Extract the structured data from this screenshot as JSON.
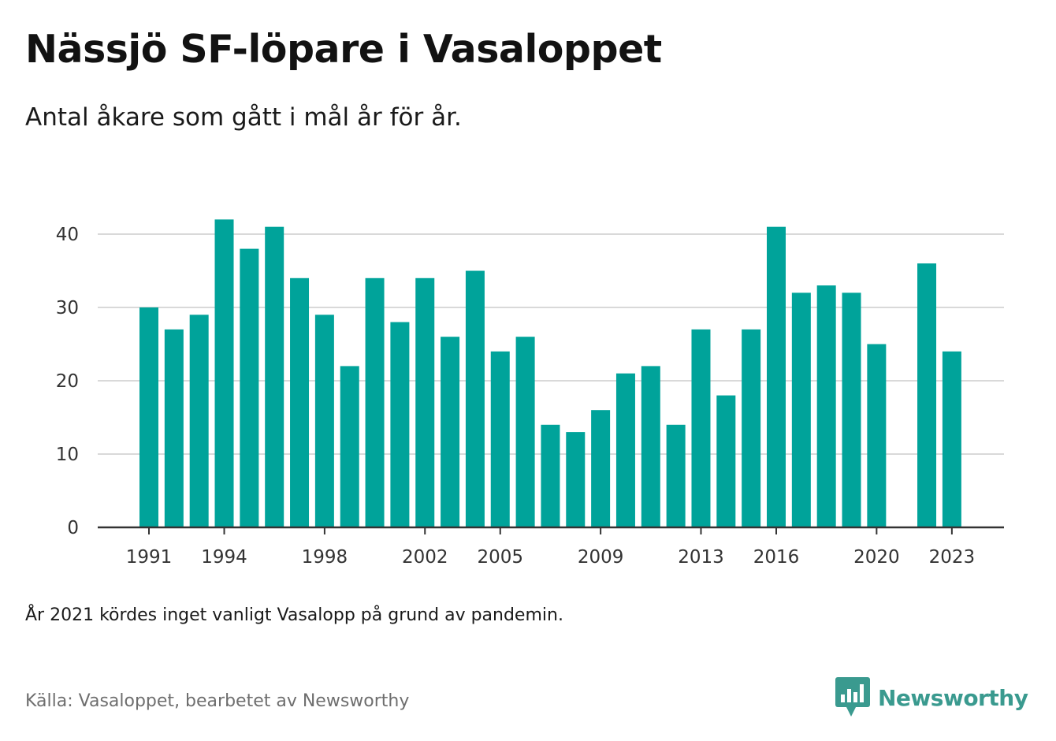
{
  "header": {
    "title": "Nässjö SF-löpare i Vasaloppet",
    "subtitle": "Antal åkare som gått i mål år för år."
  },
  "footer": {
    "note": "År 2021 kördes inget vanligt Vasalopp på grund av pandemin.",
    "source": "Källa: Vasaloppet, bearbetet av Newsworthy",
    "brand": "Newsworthy"
  },
  "colors": {
    "bar": "#00a39a",
    "grid": "#d9d9d9",
    "axis": "#333333",
    "brand": "#3a9a8f"
  },
  "icons": {
    "brand_logo": "newsworthy-logo-icon"
  },
  "chart_data": {
    "type": "bar",
    "title": "Nässjö SF-löpare i Vasaloppet",
    "subtitle": "Antal åkare som gått i mål år för år.",
    "xlabel": "",
    "ylabel": "",
    "ylim": [
      0,
      40
    ],
    "yticks": [
      0,
      10,
      20,
      30,
      40
    ],
    "xtick_labels": [
      "1991",
      "1994",
      "1998",
      "2002",
      "2005",
      "2009",
      "2013",
      "2016",
      "2020",
      "2023"
    ],
    "grid": true,
    "categories": [
      "1991",
      "1992",
      "1993",
      "1994",
      "1995",
      "1996",
      "1997",
      "1998",
      "1999",
      "2000",
      "2001",
      "2002",
      "2003",
      "2004",
      "2005",
      "2006",
      "2007",
      "2008",
      "2009",
      "2010",
      "2011",
      "2012",
      "2013",
      "2014",
      "2015",
      "2016",
      "2017",
      "2018",
      "2019",
      "2020",
      "2021",
      "2022",
      "2023"
    ],
    "values": [
      30,
      27,
      29,
      42,
      38,
      41,
      34,
      29,
      22,
      34,
      28,
      34,
      26,
      35,
      24,
      26,
      14,
      13,
      16,
      21,
      22,
      14,
      27,
      18,
      27,
      41,
      32,
      33,
      32,
      25,
      null,
      36,
      24
    ]
  }
}
